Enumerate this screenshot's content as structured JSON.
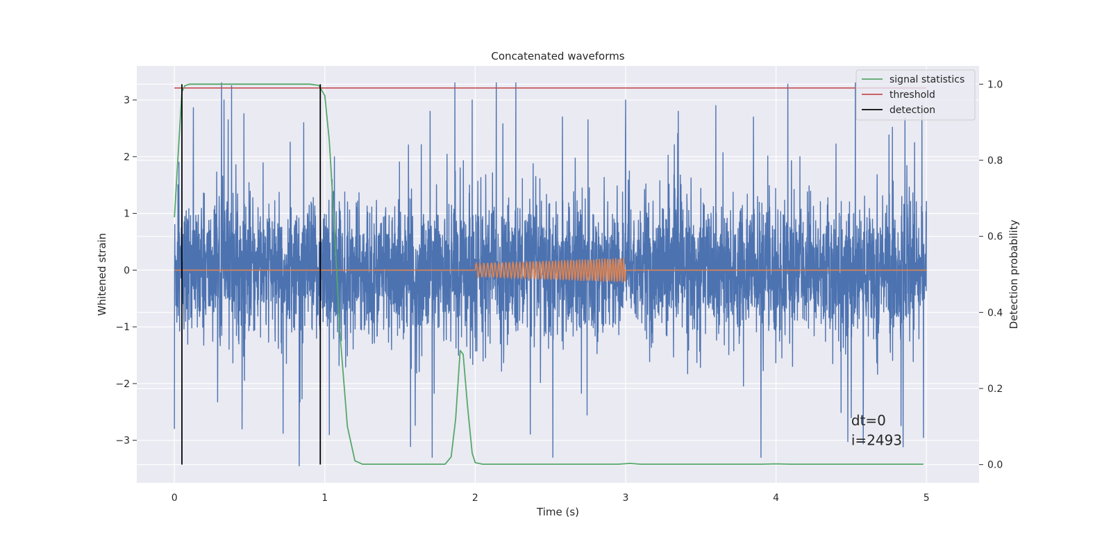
{
  "chart_data": {
    "type": "line",
    "title": "Concatenated waveforms",
    "xlabel": "Time (s)",
    "ylabel": "Whitened strain",
    "y2label": "Detection probability",
    "xlim": [
      -0.25,
      5.35
    ],
    "ylim": [
      -3.75,
      3.6
    ],
    "y2lim": [
      -0.048,
      1.048
    ],
    "xticks": [
      0,
      1,
      2,
      3,
      4,
      5
    ],
    "yticks": [
      -3,
      -2,
      -1,
      0,
      1,
      2,
      3
    ],
    "y2ticks": [
      0.0,
      0.2,
      0.4,
      0.6,
      0.8,
      1.0
    ],
    "xtick_labels": [
      "0",
      "1",
      "2",
      "3",
      "4",
      "5"
    ],
    "ytick_labels": [
      "−3",
      "−2",
      "−1",
      "0",
      "1",
      "2",
      "3"
    ],
    "y2tick_labels": [
      "0.0",
      "0.2",
      "0.4",
      "0.6",
      "0.8",
      "1.0"
    ],
    "grid": true,
    "legend_position": "top-right",
    "legend": [
      {
        "label": "signal statistics",
        "color": "#55a868"
      },
      {
        "label": "threshold",
        "color": "#c44e52"
      },
      {
        "label": "detection",
        "color": "#000000"
      }
    ],
    "series": [
      {
        "role": "noise",
        "color": "#4c72b0",
        "x_range": [
          0,
          5
        ],
        "envelope_typical": [
          -1.0,
          1.1
        ],
        "peaks": [
          {
            "x": 0.0,
            "y": -2.8
          },
          {
            "x": 0.03,
            "y": 1.9
          },
          {
            "x": 0.33,
            "y": 3.0
          },
          {
            "x": 0.38,
            "y": 3.25
          },
          {
            "x": 0.45,
            "y": -2.8
          },
          {
            "x": 0.83,
            "y": -3.45
          },
          {
            "x": 0.86,
            "y": 2.6
          },
          {
            "x": 1.03,
            "y": -2.9
          },
          {
            "x": 1.7,
            "y": 2.8
          },
          {
            "x": 1.98,
            "y": 3.0
          },
          {
            "x": 2.14,
            "y": 3.3
          },
          {
            "x": 2.27,
            "y": 3.3
          },
          {
            "x": 2.58,
            "y": 2.7
          },
          {
            "x": 2.75,
            "y": 2.65
          },
          {
            "x": 3.0,
            "y": 3.0
          },
          {
            "x": 3.35,
            "y": 2.8
          },
          {
            "x": 3.6,
            "y": 2.9
          },
          {
            "x": 3.85,
            "y": 2.7
          },
          {
            "x": 3.9,
            "y": -3.3
          },
          {
            "x": 4.5,
            "y": -2.6
          },
          {
            "x": 4.98,
            "y": -2.95
          },
          {
            "x": 4.97,
            "y": 2.85
          }
        ]
      },
      {
        "role": "injected-signal",
        "color": "#dd8452",
        "baseline": 0,
        "chirp_start": 2.0,
        "chirp_end": 3.0,
        "amplitude_start": 0.12,
        "amplitude_end": 0.22,
        "cycles": 48
      },
      {
        "name": "signal statistics",
        "color": "#55a868",
        "axis": "right",
        "x": [
          0,
          0.03,
          0.05,
          0.07,
          0.1,
          0.15,
          0.5,
          0.9,
          0.96,
          1.0,
          1.03,
          1.06,
          1.1,
          1.15,
          1.2,
          1.25,
          1.8,
          1.84,
          1.87,
          1.9,
          1.92,
          1.95,
          1.98,
          2.0,
          2.05,
          2.7,
          2.95,
          3.03,
          3.1,
          3.5,
          3.9,
          4.0,
          4.1,
          4.98
        ],
        "y": [
          0.65,
          0.85,
          0.98,
          0.996,
          1.0,
          1.0,
          1.0,
          1.0,
          0.997,
          0.97,
          0.85,
          0.65,
          0.35,
          0.1,
          0.01,
          0.001,
          0.001,
          0.02,
          0.12,
          0.3,
          0.29,
          0.15,
          0.03,
          0.005,
          0.001,
          0.001,
          0.001,
          0.003,
          0.001,
          0.001,
          0.001,
          0.002,
          0.001,
          0.001
        ]
      },
      {
        "name": "threshold",
        "color": "#c44e52",
        "axis": "right",
        "x": [
          0,
          5
        ],
        "y": [
          0.99,
          0.99
        ]
      },
      {
        "name": "detection",
        "color": "#000000",
        "type": "vlines",
        "x": [
          0.05,
          0.97
        ]
      }
    ],
    "annotations": [
      "dt=0",
      "i=2493"
    ],
    "annotation_x": 4.5,
    "annotation_y": [
      -2.65,
      -3.0
    ]
  }
}
